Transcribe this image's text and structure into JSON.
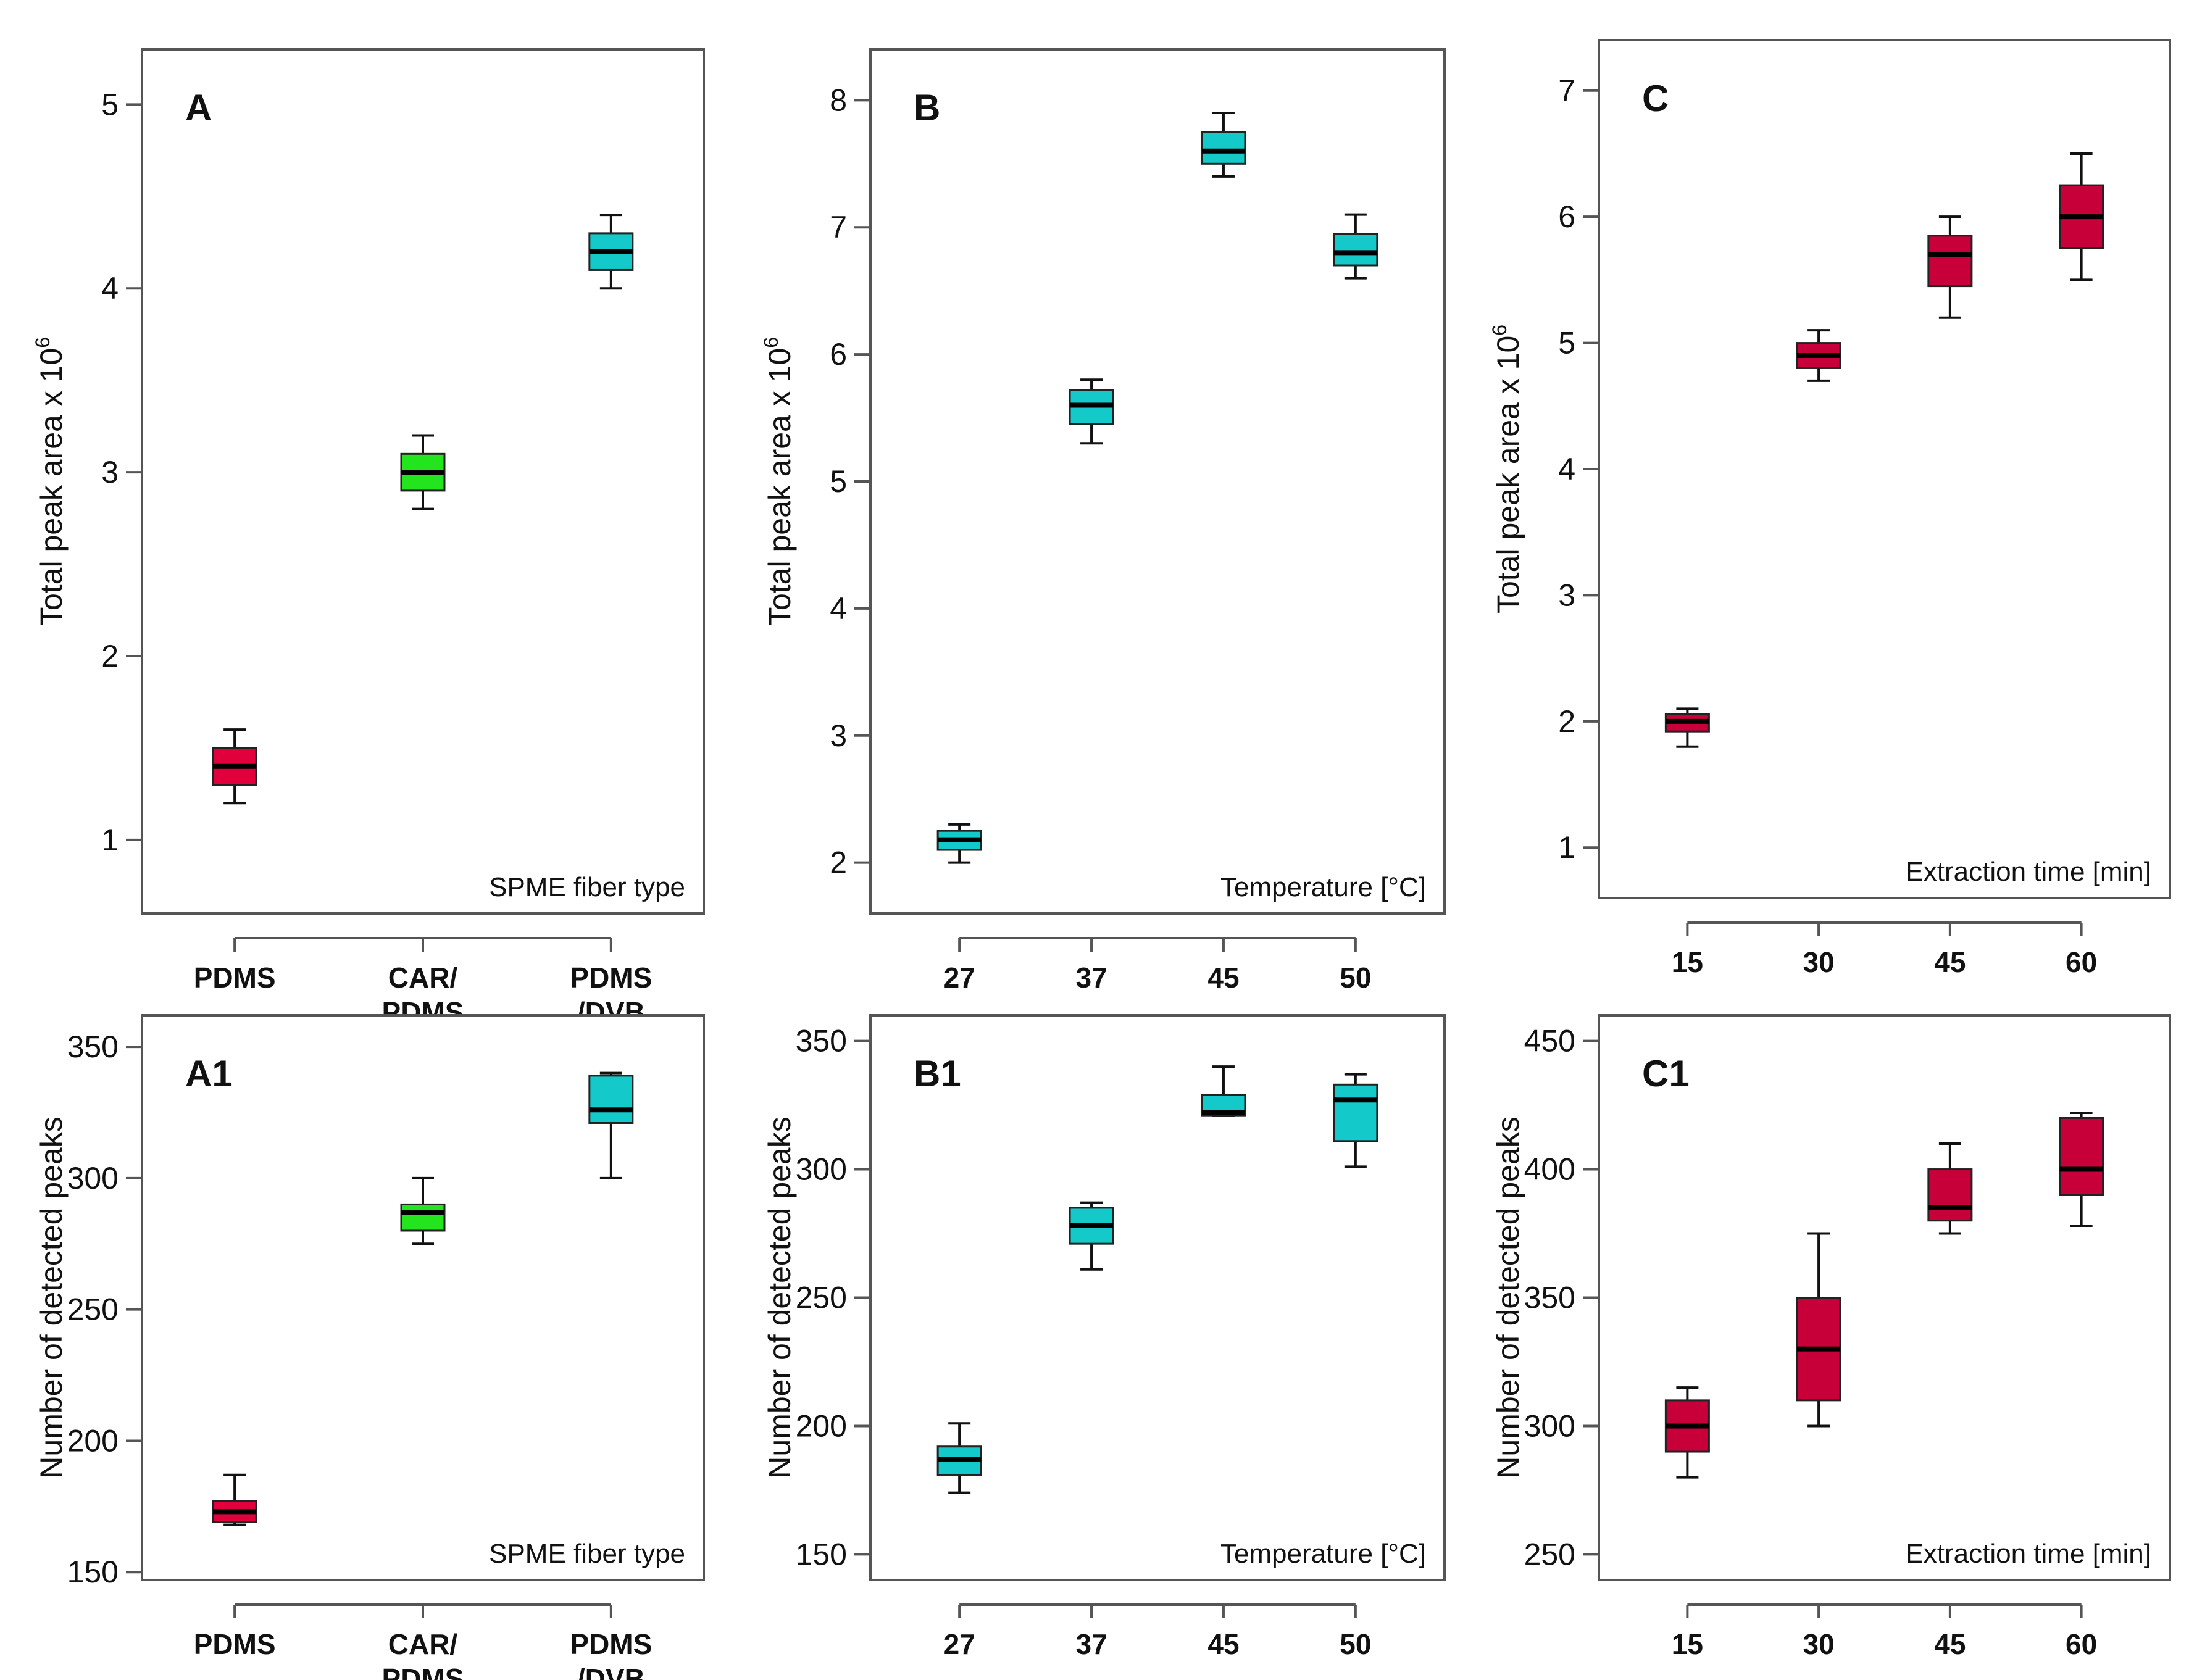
{
  "colors": {
    "red": "#e2003c",
    "green": "#22e51d",
    "cyan": "#14c9c9",
    "crimson": "#c8003a"
  },
  "chart_data": [
    {
      "type": "boxplot",
      "panel": "A",
      "ylabel": "Total peak area x 10",
      "ylabel_sup": "6",
      "xlabel": "SPME fiber type",
      "ylim": [
        0.6,
        5.3
      ],
      "yticks": [
        "1",
        "2",
        "3",
        "4",
        "5"
      ],
      "categories": [
        [
          "PDMS"
        ],
        [
          "CAR/",
          "PDMS"
        ],
        [
          "PDMS",
          "/DVB"
        ]
      ],
      "series": [
        {
          "category": "PDMS",
          "color": "red",
          "min": 1.2,
          "q1": 1.3,
          "median": 1.4,
          "q3": 1.5,
          "max": 1.6
        },
        {
          "category": "CAR/PDMS",
          "color": "green",
          "min": 2.8,
          "q1": 2.9,
          "median": 3.0,
          "q3": 3.1,
          "max": 3.2
        },
        {
          "category": "PDMS/DVB",
          "color": "cyan",
          "min": 4.0,
          "q1": 4.1,
          "median": 4.2,
          "q3": 4.3,
          "max": 4.4
        }
      ]
    },
    {
      "type": "boxplot",
      "panel": "B",
      "ylabel": "Total peak area x 10",
      "ylabel_sup": "6",
      "xlabel": "Temperature  [°C]",
      "ylim": [
        1.6,
        8.4
      ],
      "yticks": [
        "2",
        "3",
        "4",
        "5",
        "6",
        "7",
        "8"
      ],
      "categories": [
        [
          "27"
        ],
        [
          "37"
        ],
        [
          "45"
        ],
        [
          "50"
        ]
      ],
      "series": [
        {
          "category": "27",
          "color": "cyan",
          "min": 2.0,
          "q1": 2.1,
          "median": 2.18,
          "q3": 2.25,
          "max": 2.3
        },
        {
          "category": "37",
          "color": "cyan",
          "min": 5.3,
          "q1": 5.45,
          "median": 5.6,
          "q3": 5.72,
          "max": 5.8
        },
        {
          "category": "45",
          "color": "cyan",
          "min": 7.4,
          "q1": 7.5,
          "median": 7.6,
          "q3": 7.75,
          "max": 7.9
        },
        {
          "category": "50",
          "color": "cyan",
          "min": 6.6,
          "q1": 6.7,
          "median": 6.8,
          "q3": 6.95,
          "max": 7.1
        }
      ]
    },
    {
      "type": "boxplot",
      "panel": "C",
      "ylabel": "Total peak area x 10",
      "ylabel_sup": "6",
      "xlabel": "Extraction time [min]",
      "ylim": [
        0.6,
        7.4
      ],
      "yticks": [
        "1",
        "2",
        "3",
        "4",
        "5",
        "6",
        "7"
      ],
      "categories": [
        [
          "15"
        ],
        [
          "30"
        ],
        [
          "45"
        ],
        [
          "60"
        ]
      ],
      "series": [
        {
          "category": "15",
          "color": "crimson",
          "min": 1.8,
          "q1": 1.92,
          "median": 2.0,
          "q3": 2.06,
          "max": 2.1
        },
        {
          "category": "30",
          "color": "crimson",
          "min": 4.7,
          "q1": 4.8,
          "median": 4.9,
          "q3": 5.0,
          "max": 5.1
        },
        {
          "category": "45",
          "color": "crimson",
          "min": 5.2,
          "q1": 5.45,
          "median": 5.7,
          "q3": 5.85,
          "max": 6.0
        },
        {
          "category": "60",
          "color": "crimson",
          "min": 5.5,
          "q1": 5.75,
          "median": 6.0,
          "q3": 6.25,
          "max": 6.5
        }
      ]
    },
    {
      "type": "boxplot",
      "panel": "A1",
      "ylabel": "Number of detected peaks",
      "xlabel": "SPME fiber type",
      "ylim": [
        147,
        362
      ],
      "yticks": [
        "150",
        "200",
        "250",
        "300",
        "350"
      ],
      "categories": [
        [
          "PDMS"
        ],
        [
          "CAR/",
          "PDMS"
        ],
        [
          "PDMS",
          "/DVB"
        ]
      ],
      "series": [
        {
          "category": "PDMS",
          "color": "red",
          "min": 168,
          "q1": 169,
          "median": 173,
          "q3": 177,
          "max": 187
        },
        {
          "category": "CAR/PDMS",
          "color": "green",
          "min": 275,
          "q1": 280,
          "median": 287,
          "q3": 290,
          "max": 300
        },
        {
          "category": "PDMS/DVB",
          "color": "cyan",
          "min": 300,
          "q1": 321,
          "median": 326,
          "q3": 339,
          "max": 340
        }
      ]
    },
    {
      "type": "boxplot",
      "panel": "B1",
      "ylabel": "Number of detected peaks",
      "xlabel": "Temperature  [°C]",
      "ylim": [
        140,
        360
      ],
      "yticks": [
        "150",
        "200",
        "250",
        "300",
        "350"
      ],
      "categories": [
        [
          "27"
        ],
        [
          "37"
        ],
        [
          "45"
        ],
        [
          "50"
        ]
      ],
      "series": [
        {
          "category": "27",
          "color": "cyan",
          "min": 174,
          "q1": 181,
          "median": 187,
          "q3": 192,
          "max": 201
        },
        {
          "category": "37",
          "color": "cyan",
          "min": 261,
          "q1": 271,
          "median": 278,
          "q3": 285,
          "max": 287
        },
        {
          "category": "45",
          "color": "cyan",
          "min": 321,
          "q1": 321,
          "median": 322,
          "q3": 329,
          "max": 340
        },
        {
          "category": "50",
          "color": "cyan",
          "min": 301,
          "q1": 311,
          "median": 327,
          "q3": 333,
          "max": 337
        }
      ]
    },
    {
      "type": "boxplot",
      "panel": "C1",
      "ylabel": "Number of detected peaks",
      "xlabel": "Extraction time [min]",
      "ylim": [
        240,
        460
      ],
      "yticks": [
        "250",
        "300",
        "350",
        "400",
        "450"
      ],
      "categories": [
        [
          "15"
        ],
        [
          "30"
        ],
        [
          "45"
        ],
        [
          "60"
        ]
      ],
      "series": [
        {
          "category": "15",
          "color": "crimson",
          "min": 280,
          "q1": 290,
          "median": 300,
          "q3": 310,
          "max": 315
        },
        {
          "category": "30",
          "color": "crimson",
          "min": 300,
          "q1": 310,
          "median": 330,
          "q3": 350,
          "max": 375
        },
        {
          "category": "45",
          "color": "crimson",
          "min": 375,
          "q1": 380,
          "median": 385,
          "q3": 400,
          "max": 410
        },
        {
          "category": "60",
          "color": "crimson",
          "min": 378,
          "q1": 390,
          "median": 400,
          "q3": 420,
          "max": 422
        }
      ]
    }
  ]
}
